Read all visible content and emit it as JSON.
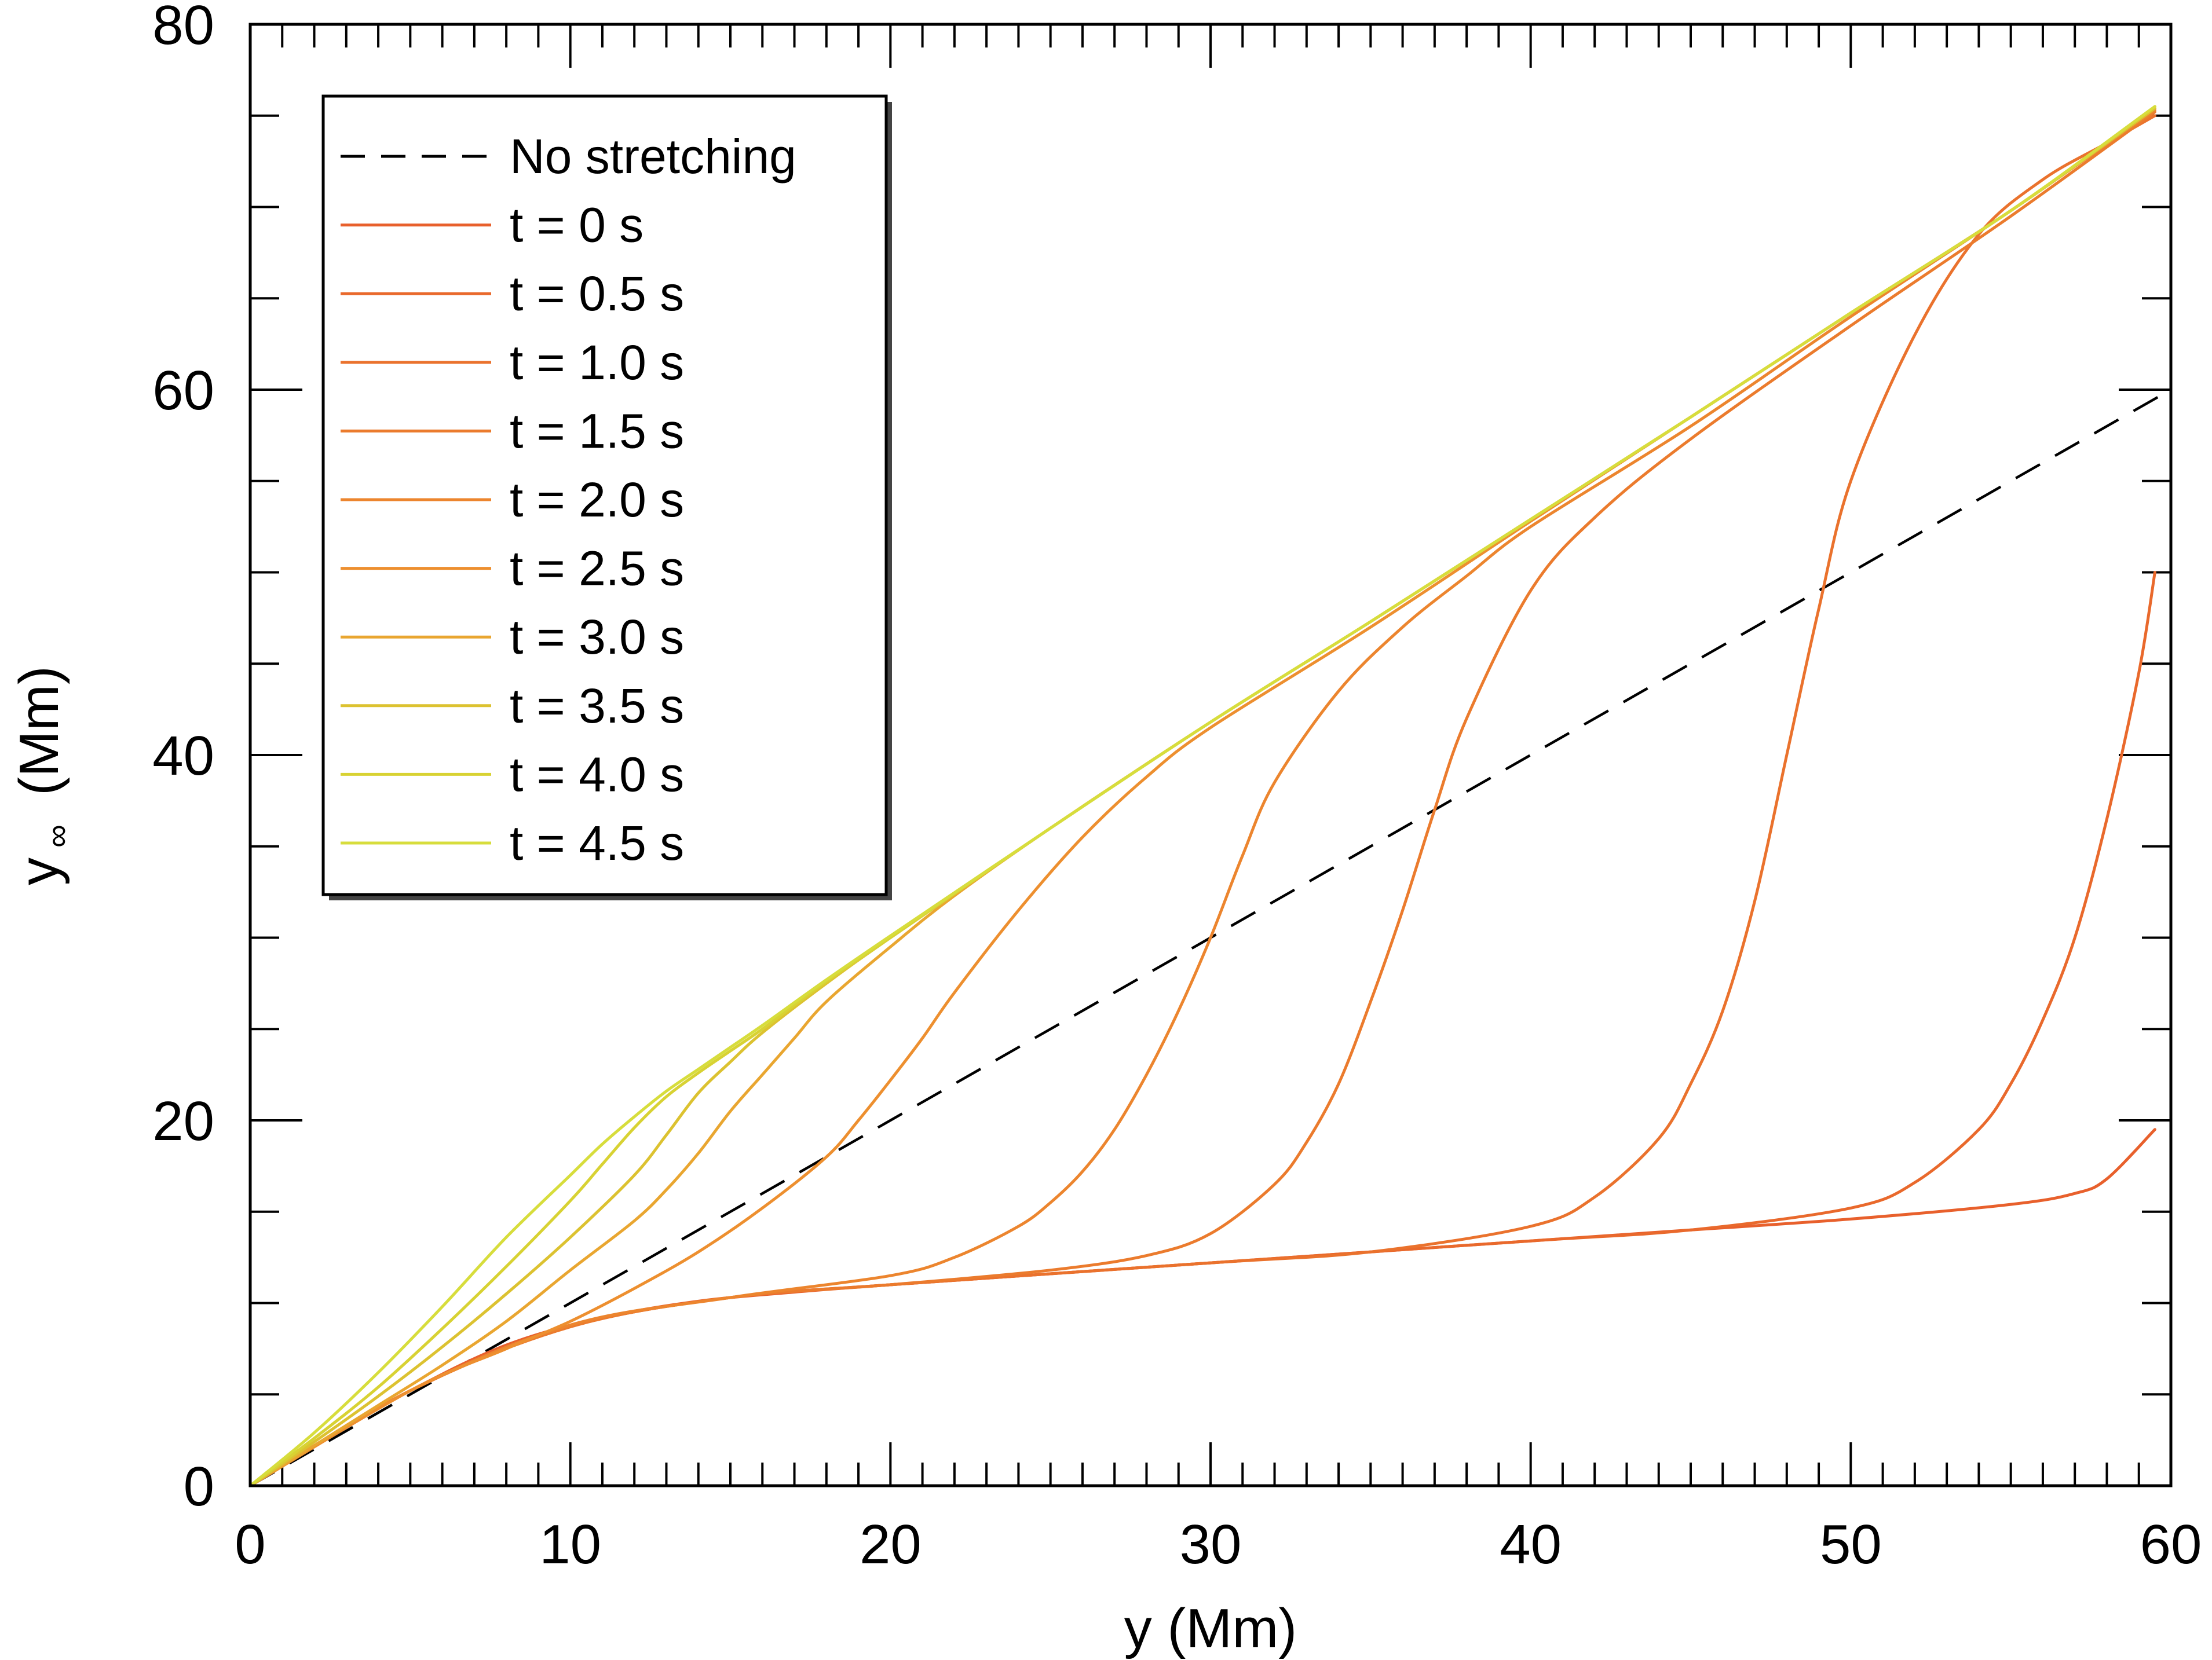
{
  "chart_data": {
    "type": "line",
    "title": "",
    "xlabel": "y (Mm)",
    "ylabel": "y∞ (Mm)",
    "ylabel_main": "y",
    "ylabel_sub": "∞",
    "ylabel_unit": "(Mm)",
    "xlim": [
      0,
      60
    ],
    "ylim": [
      0,
      80
    ],
    "x_ticks": [
      0,
      10,
      20,
      30,
      40,
      50,
      60
    ],
    "x_tick_labels": [
      "0",
      "10",
      "20",
      "30",
      "40",
      "50",
      "60"
    ],
    "y_ticks": [
      0,
      20,
      40,
      60,
      80
    ],
    "y_tick_labels": [
      "0",
      "20",
      "40",
      "60",
      "80"
    ],
    "grid": false,
    "legend_position": "top-left",
    "series": [
      {
        "name": "No stretching",
        "style": "dashed",
        "color": "#000000",
        "x": [
          0,
          60
        ],
        "y": [
          0,
          60
        ]
      },
      {
        "name": "t = 0 s",
        "color": "#e8602c",
        "x": [
          0,
          2,
          5,
          8,
          11,
          14,
          17,
          20,
          25,
          30,
          35,
          40,
          45,
          50,
          55,
          57,
          58,
          59.5
        ],
        "y": [
          0,
          2.2,
          5.2,
          7.7,
          9.2,
          10.1,
          10.6,
          11.0,
          11.6,
          12.2,
          12.8,
          13.4,
          14.0,
          14.6,
          15.4,
          16.0,
          16.8,
          19.5
        ]
      },
      {
        "name": "t = 0.5 s",
        "color": "#e9692c",
        "x": [
          0,
          5,
          10,
          15,
          20,
          30,
          40,
          45,
          50,
          52,
          54,
          55,
          56,
          57,
          58,
          59,
          59.5
        ],
        "y": [
          0,
          5.2,
          8.7,
          10.3,
          11.0,
          12.2,
          13.4,
          14.0,
          15.2,
          16.6,
          19.5,
          22.0,
          25.5,
          30.0,
          36.5,
          44.5,
          50.0
        ]
      },
      {
        "name": "t = 1.0 s",
        "color": "#ea722d",
        "x": [
          0,
          5,
          10,
          15,
          20,
          30,
          35,
          40,
          42,
          44,
          45,
          46,
          47,
          48,
          49,
          50,
          52,
          54,
          56,
          58,
          59.5
        ],
        "y": [
          0,
          5.2,
          8.7,
          10.3,
          11.0,
          12.2,
          12.8,
          14.2,
          15.8,
          19.0,
          22.0,
          26.0,
          32.0,
          40.0,
          48.0,
          55.0,
          63.0,
          68.5,
          71.5,
          73.5,
          75.0
        ]
      },
      {
        "name": "t = 1.5 s",
        "color": "#eb7b2d",
        "x": [
          0,
          5,
          10,
          15,
          20,
          25,
          28,
          30,
          32,
          33,
          34,
          35,
          36,
          37,
          38,
          40,
          42,
          45,
          50,
          55,
          59.5
        ],
        "y": [
          0,
          5.2,
          8.7,
          10.3,
          11.0,
          11.8,
          12.6,
          13.8,
          16.5,
          18.8,
          22.0,
          26.5,
          31.5,
          37.0,
          42.0,
          49.0,
          53.0,
          57.3,
          63.5,
          69.5,
          75.2
        ]
      },
      {
        "name": "t = 2.0 s",
        "color": "#ec852e",
        "x": [
          0,
          5,
          10,
          15,
          20,
          22,
          24,
          25,
          26,
          27,
          28,
          29,
          30,
          31,
          32,
          34,
          36,
          38,
          40,
          45,
          50,
          55,
          59.5
        ],
        "y": [
          0,
          5.2,
          8.8,
          10.3,
          11.5,
          12.5,
          14.2,
          15.5,
          17.2,
          19.5,
          22.5,
          26.0,
          30.0,
          34.5,
          38.5,
          43.5,
          47.0,
          49.8,
          52.5,
          58.0,
          64.0,
          69.8,
          75.3
        ]
      },
      {
        "name": "t = 2.5 s",
        "color": "#ed8f2f",
        "x": [
          0,
          5,
          8,
          10,
          12,
          14,
          16,
          18,
          19,
          20,
          21,
          22,
          24,
          26,
          28,
          30,
          35,
          40,
          45,
          50,
          55,
          59.5
        ],
        "y": [
          0,
          5.2,
          7.5,
          9.0,
          10.8,
          12.8,
          15.2,
          18.0,
          20.0,
          22.2,
          24.5,
          27.0,
          31.5,
          35.5,
          38.8,
          41.5,
          47.0,
          52.8,
          58.5,
          64.2,
          69.8,
          75.4
        ]
      },
      {
        "name": "t = 3.0 s",
        "color": "#e9a630",
        "x": [
          0,
          2,
          4,
          6,
          8,
          10,
          12,
          13,
          14,
          15,
          16,
          17,
          18,
          20,
          22,
          25,
          30,
          35,
          40,
          45,
          50,
          55,
          59.5
        ],
        "y": [
          0,
          2.2,
          4.4,
          6.6,
          9.0,
          11.8,
          14.5,
          16.2,
          18.2,
          20.5,
          22.5,
          24.5,
          26.5,
          29.5,
          32.3,
          36.0,
          41.8,
          47.3,
          52.9,
          58.5,
          64.2,
          69.8,
          75.4
        ]
      },
      {
        "name": "t = 3.5 s",
        "color": "#dcc230",
        "x": [
          0,
          2,
          4,
          6,
          8,
          10,
          12,
          13,
          14,
          15,
          16,
          18,
          20,
          25,
          30,
          35,
          40,
          45,
          50,
          55,
          59.5
        ],
        "y": [
          0,
          2.4,
          4.9,
          7.6,
          10.5,
          13.6,
          17.0,
          19.2,
          21.5,
          23.2,
          24.8,
          27.5,
          30.0,
          36.0,
          41.8,
          47.3,
          52.9,
          58.5,
          64.2,
          69.8,
          75.4
        ]
      },
      {
        "name": "t = 4.0 s",
        "color": "#d8d233",
        "x": [
          0,
          2,
          4,
          6,
          8,
          10,
          11,
          12,
          13,
          14,
          15,
          16,
          18,
          20,
          25,
          30,
          35,
          40,
          45,
          50,
          55,
          59.5
        ],
        "y": [
          0,
          2.6,
          5.4,
          8.6,
          12.0,
          15.6,
          17.6,
          19.6,
          21.3,
          22.6,
          23.8,
          25.0,
          27.6,
          30.0,
          36.0,
          41.8,
          47.3,
          52.9,
          58.5,
          64.2,
          69.8,
          75.5
        ]
      },
      {
        "name": "t = 4.5 s",
        "color": "#d7dd3c",
        "x": [
          0,
          2,
          4,
          6,
          8,
          10,
          11,
          12,
          13,
          14,
          15,
          16,
          18,
          20,
          25,
          30,
          35,
          40,
          45,
          50,
          55,
          59.5
        ],
        "y": [
          0,
          2.9,
          6.2,
          9.8,
          13.6,
          17.0,
          18.7,
          20.2,
          21.6,
          22.8,
          24.0,
          25.2,
          27.7,
          30.1,
          36.0,
          41.8,
          47.3,
          52.9,
          58.5,
          64.2,
          69.8,
          75.5
        ]
      }
    ]
  }
}
